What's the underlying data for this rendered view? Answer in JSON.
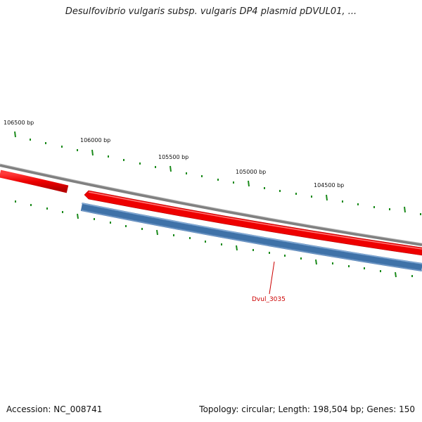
{
  "title": "Desulfovibrio vulgaris subsp. vulgaris DP4 plasmid pDVUL01, ...",
  "ticks": [
    "106500 bp",
    "106000 bp",
    "105500 bp",
    "105000 bp",
    "104500 bp"
  ],
  "genes": [
    {
      "label": "Dvul_3035"
    }
  ],
  "footer": {
    "accession": "Accession: NC_008741",
    "summary": "Topology: circular; Length: 198,504 bp; Genes: 150"
  },
  "colors": {
    "backbone": "#888888",
    "forward_strand": "#ee0000",
    "reverse_strand": "#4a7fb5",
    "ticks": "#1a8a1a",
    "gene_label": "#cc0000"
  }
}
